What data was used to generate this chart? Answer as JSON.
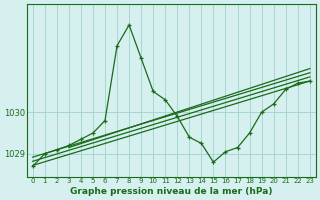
{
  "title": "Graphe pression niveau de la mer (hPa)",
  "bg_color": "#d6efef",
  "grid_color": "#a8d5d5",
  "line_color": "#1a6b1a",
  "x_ticks": [
    0,
    1,
    2,
    3,
    4,
    5,
    6,
    7,
    8,
    9,
    10,
    11,
    12,
    13,
    14,
    15,
    16,
    17,
    18,
    19,
    20,
    21,
    22,
    23
  ],
  "ylim": [
    1028.45,
    1032.6
  ],
  "yticks": [
    1029,
    1030
  ],
  "main_series": [
    1028.7,
    1029.0,
    1029.1,
    1029.2,
    1029.35,
    1029.5,
    1029.8,
    1031.6,
    1032.1,
    1031.3,
    1030.5,
    1030.3,
    1029.9,
    1029.4,
    1029.25,
    1028.8,
    1029.05,
    1029.15,
    1029.5,
    1030.0,
    1030.2,
    1030.55,
    1030.7,
    1030.75
  ],
  "diag_lines": [
    {
      "x0": 0,
      "y0": 1028.72,
      "x1": 23,
      "y1": 1030.75
    },
    {
      "x0": 0,
      "y0": 1028.82,
      "x1": 23,
      "y1": 1030.85
    },
    {
      "x0": 0,
      "y0": 1028.92,
      "x1": 23,
      "y1": 1030.95
    },
    {
      "x0": 3,
      "y0": 1029.15,
      "x1": 23,
      "y1": 1031.05
    }
  ]
}
